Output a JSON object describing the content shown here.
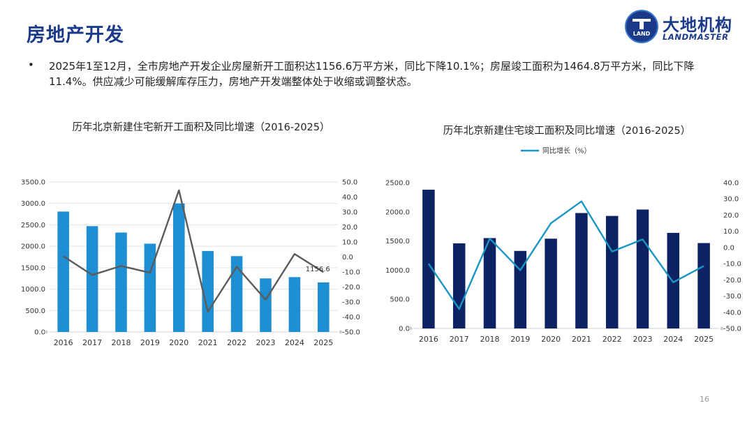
{
  "header": {
    "title": "房地产开发"
  },
  "logo": {
    "mark_text": "LAND",
    "name_cn": "大地机构",
    "name_en": "LANDMASTER"
  },
  "summary": {
    "bullet": "•",
    "text": "2025年1至12月，全市房地产开发企业房屋新开工面积达1156.6万平方米，同比下降10.1%；房屋竣工面积为1464.8万平方米，同比下降11.4%。供应减少可能缓解库存压力，房地产开发端整体处于收缩或调整状态。"
  },
  "page_number": "16",
  "chart_data": [
    {
      "type": "bar",
      "title": "历年北京新建住宅新开工面积及同比增速（2016-2025）",
      "categories": [
        "2016",
        "2017",
        "2018",
        "2019",
        "2020",
        "2021",
        "2022",
        "2023",
        "2024",
        "2025"
      ],
      "series": [
        {
          "values": [
            2810,
            2470,
            2320,
            2060,
            3000,
            1890,
            1770,
            1250,
            1280,
            1156.6
          ],
          "axis": "left"
        },
        {
          "type": "line",
          "values": [
            0.5,
            -12,
            -6,
            -10.5,
            44.5,
            -36.5,
            -6.5,
            -28.5,
            2,
            -10.1
          ],
          "axis": "right"
        }
      ],
      "data_labels": [
        {
          "index": 9,
          "text": "1156.6"
        }
      ],
      "ylim": [
        0,
        3500
      ],
      "yticks": [
        "0.0",
        "500.0",
        "1000.0",
        "1500.0",
        "2000.0",
        "2500.0",
        "3000.0",
        "3500.0"
      ],
      "y2lim": [
        -50,
        50
      ],
      "y2ticks": [
        "-50.0",
        "-40.0",
        "-30.0",
        "-20.0",
        "-10.0",
        "0.0",
        "10.0",
        "20.0",
        "30.0",
        "40.0",
        "50.0"
      ],
      "grid": true,
      "colors": {
        "bar": "#1f8fd3",
        "line": "#5b5b5b"
      }
    },
    {
      "type": "bar",
      "title": "历年北京新建住宅竣工面积及同比增速（2016-2025）",
      "categories": [
        "2016",
        "2017",
        "2018",
        "2019",
        "2020",
        "2021",
        "2022",
        "2023",
        "2024",
        "2025"
      ],
      "series": [
        {
          "values": [
            2380,
            1460,
            1550,
            1330,
            1540,
            1980,
            1930,
            2040,
            1640,
            1464.8
          ],
          "axis": "left"
        },
        {
          "type": "line",
          "name": "同比增长（%）",
          "values": [
            -10,
            -38,
            5.5,
            -14,
            15,
            28.5,
            -2.5,
            5,
            -21.5,
            -11.4
          ],
          "axis": "right"
        }
      ],
      "legend": "top-center",
      "ylim": [
        0,
        2500
      ],
      "yticks": [
        "0.0",
        "500.0",
        "1000.0",
        "1500.0",
        "2000.0",
        "2500.0"
      ],
      "y2lim": [
        -50,
        40
      ],
      "y2ticks": [
        "-50.0",
        "-40.0",
        "-30.0",
        "-20.0",
        "-10.0",
        "0.0",
        "10.0",
        "20.0",
        "30.0",
        "40.0"
      ],
      "grid": false,
      "colors": {
        "bar": "#0d2263",
        "line": "#1a95c4"
      }
    }
  ]
}
